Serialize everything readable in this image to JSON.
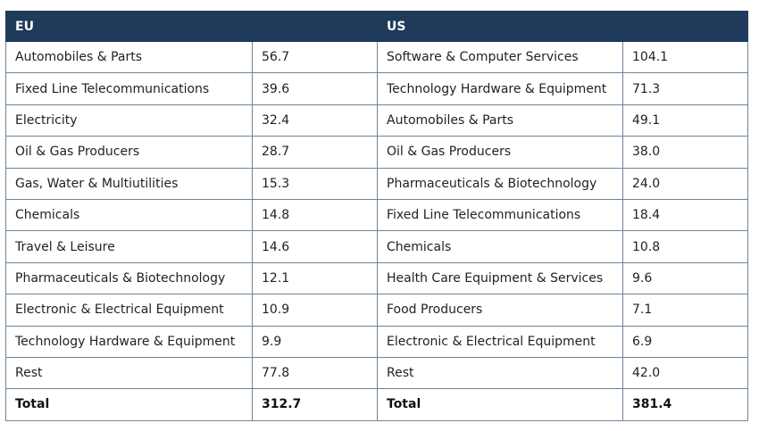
{
  "table": {
    "headers": [
      "EU",
      "US"
    ],
    "rows": [
      [
        "Automobiles & Parts",
        "56.7",
        "Software & Computer Services",
        "104.1"
      ],
      [
        "Fixed Line Telecommunications",
        "39.6",
        "Technology Hardware & Equipment",
        "71.3"
      ],
      [
        "Electricity",
        "32.4",
        "Automobiles & Parts",
        "49.1"
      ],
      [
        "Oil & Gas Producers",
        "28.7",
        "Oil & Gas Producers",
        "38.0"
      ],
      [
        "Gas, Water & Multiutilities",
        "15.3",
        "Pharmaceuticals & Biotechnology",
        "24.0"
      ],
      [
        "Chemicals",
        "14.8",
        "Fixed Line Telecommunications",
        "18.4"
      ],
      [
        "Travel & Leisure",
        "14.6",
        "Chemicals",
        "10.8"
      ],
      [
        "Pharmaceuticals & Biotechnology",
        "12.1",
        "Health Care Equipment & Services",
        "9.6"
      ],
      [
        "Electronic & Electrical Equipment",
        "10.9",
        "Food Producers",
        "7.1"
      ],
      [
        "Technology Hardware & Equipment",
        "9.9",
        "Electronic & Electrical Equipment",
        "6.9"
      ],
      [
        "Rest",
        "77.8",
        "Rest",
        "42.0"
      ],
      [
        "Total",
        "312.7",
        "Total",
        "381.4"
      ]
    ]
  }
}
